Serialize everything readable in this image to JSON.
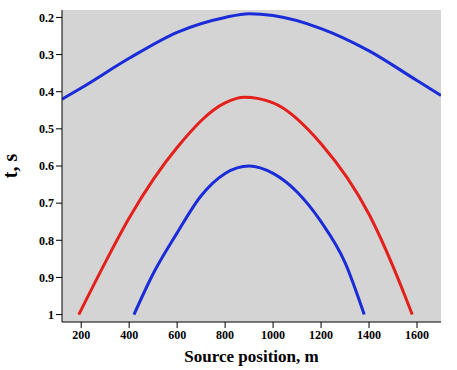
{
  "chart_data": {
    "type": "line",
    "x_label": "Source position, m",
    "y_label": "t, s",
    "xlim": [
      120,
      1700
    ],
    "xticks": [
      200,
      400,
      600,
      800,
      1000,
      1200,
      1400,
      1600
    ],
    "ylim": [
      0.18,
      1.02
    ],
    "yticks": [
      0.2,
      0.3,
      0.4,
      0.5,
      0.6,
      0.7,
      0.8,
      0.9,
      1
    ],
    "y_inverted": true,
    "grid": false,
    "series": [
      {
        "color": "#1a2bd8",
        "x": [
          120,
          200,
          400,
          600,
          800,
          900,
          1000,
          1200,
          1400,
          1600,
          1700
        ],
        "values": [
          0.42,
          0.39,
          0.31,
          0.24,
          0.2,
          0.19,
          0.195,
          0.23,
          0.29,
          0.37,
          0.41
        ]
      },
      {
        "color": "#e3201b",
        "x": [
          190,
          300,
          400,
          600,
          800,
          880,
          1000,
          1200,
          1400,
          1550,
          1580
        ],
        "values": [
          1.0,
          0.86,
          0.74,
          0.55,
          0.43,
          0.415,
          0.43,
          0.54,
          0.73,
          0.95,
          1.0
        ]
      },
      {
        "color": "#1a2bd8",
        "x": [
          420,
          500,
          600,
          700,
          800,
          900,
          1000,
          1100,
          1200,
          1300,
          1380
        ],
        "values": [
          1.0,
          0.89,
          0.78,
          0.68,
          0.62,
          0.6,
          0.62,
          0.67,
          0.75,
          0.86,
          1.0
        ]
      }
    ]
  }
}
